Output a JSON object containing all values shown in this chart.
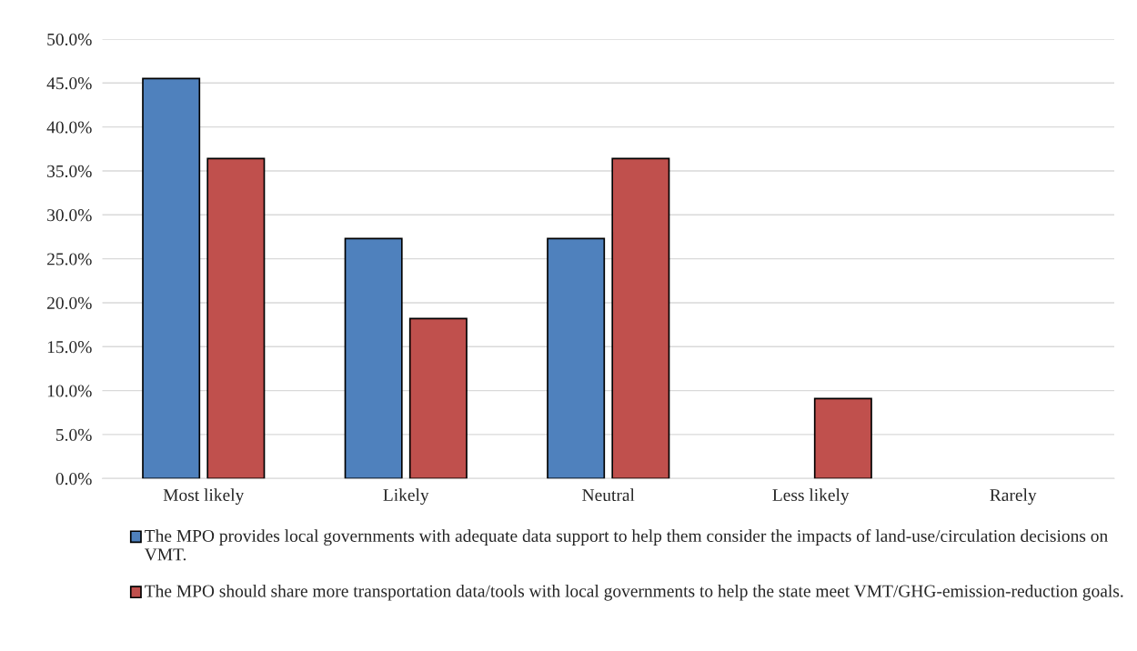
{
  "chart_data": {
    "type": "bar",
    "categories": [
      "Most likely",
      "Likely",
      "Neutral",
      "Less likely",
      "Rarely"
    ],
    "series": [
      {
        "name": "The MPO provides local governments with adequate data support to help them consider the impacts of land-use/circulation decisions on VMT.",
        "color": "#4f81bd",
        "values": [
          45.5,
          27.3,
          27.3,
          0,
          0
        ]
      },
      {
        "name": "The MPO should share more transportation data/tools with local governments to help the state meet VMT/GHG-emission-reduction goals.",
        "color": "#c0504d",
        "values": [
          36.4,
          18.2,
          36.4,
          9.1,
          0
        ]
      }
    ],
    "ylim": [
      0,
      50
    ],
    "yticks": [
      {
        "value": 0,
        "label": "0.0%"
      },
      {
        "value": 5,
        "label": "5.0%"
      },
      {
        "value": 10,
        "label": "10.0%"
      },
      {
        "value": 15,
        "label": "15.0%"
      },
      {
        "value": 20,
        "label": "20.0%"
      },
      {
        "value": 25,
        "label": "25.0%"
      },
      {
        "value": 30,
        "label": "30.0%"
      },
      {
        "value": 35,
        "label": "35.0%"
      },
      {
        "value": 40,
        "label": "40.0%"
      },
      {
        "value": 45,
        "label": "45.0%"
      },
      {
        "value": 50,
        "label": "50.0%"
      }
    ],
    "grid": "y",
    "legend": "bottom"
  }
}
